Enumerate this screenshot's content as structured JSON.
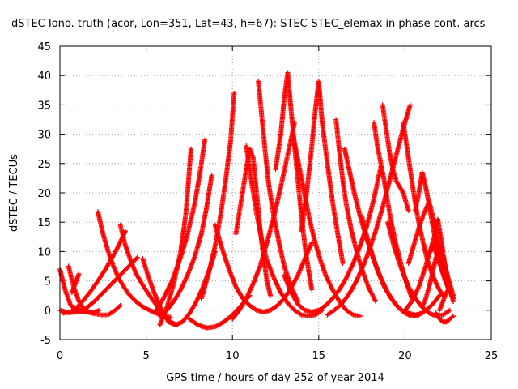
{
  "chart_data": {
    "type": "scatter",
    "title": "dSTEC Iono. truth (acor, Lon=351, Lat=43, h=67): STEC-STEC_elemax in phase cont. arcs",
    "xlabel": "GPS time / hours of day 252 of year 2014",
    "ylabel": "dSTEC  / TECUs",
    "xlim": [
      0,
      25
    ],
    "ylim": [
      -5,
      45
    ],
    "xticks": [
      0,
      5,
      10,
      15,
      20,
      25
    ],
    "yticks": [
      -5,
      0,
      5,
      10,
      15,
      20,
      25,
      30,
      35,
      40,
      45
    ],
    "grid": true,
    "marker": "+",
    "color": "#ff0000",
    "arcs": [
      {
        "x": [
          0.0,
          0.3,
          0.6,
          0.9,
          1.2,
          1.5
        ],
        "y": [
          7.0,
          3.5,
          1.0,
          0.0,
          -0.3,
          -0.2
        ]
      },
      {
        "x": [
          0.0,
          0.5,
          1.0,
          1.5,
          2.0,
          2.5,
          3.0,
          3.5,
          4.0,
          4.5
        ],
        "y": [
          0.0,
          -0.4,
          -0.3,
          0.3,
          1.5,
          3.0,
          4.5,
          6.0,
          7.5,
          9.0
        ]
      },
      {
        "x": [
          0.5,
          0.8,
          1.1,
          1.4,
          1.7,
          2.0,
          2.3
        ],
        "y": [
          7.5,
          4.0,
          1.5,
          0.2,
          -0.3,
          -0.3,
          0.0
        ]
      },
      {
        "x": [
          0.2,
          0.6,
          1.0,
          1.4,
          1.8,
          2.2,
          2.6,
          3.0,
          3.4,
          3.8
        ],
        "y": [
          -0.5,
          -0.3,
          0.5,
          1.8,
          3.3,
          5.0,
          6.8,
          8.8,
          11.0,
          13.5
        ]
      },
      {
        "x": [
          0.7,
          0.9,
          1.1
        ],
        "y": [
          3.0,
          4.6,
          6.2
        ]
      },
      {
        "x": [
          2.2,
          2.5,
          2.8,
          3.1,
          3.4,
          3.7,
          4.0,
          4.4,
          4.8,
          5.2,
          5.6,
          6.0,
          6.4
        ],
        "y": [
          16.8,
          13.0,
          10.0,
          7.5,
          5.5,
          4.0,
          2.7,
          1.5,
          0.6,
          0.0,
          -0.5,
          -1.0,
          -1.2
        ]
      },
      {
        "x": [
          0.8,
          1.2,
          1.6,
          2.0,
          2.4,
          2.8,
          3.2,
          3.5
        ],
        "y": [
          0.5,
          0.0,
          -0.3,
          -0.6,
          -0.8,
          -0.8,
          0.0,
          0.8
        ]
      },
      {
        "x": [
          3.5,
          3.8,
          4.1,
          4.4,
          4.8,
          5.2,
          5.6,
          6.0,
          6.4,
          6.8
        ],
        "y": [
          14.5,
          11.0,
          8.5,
          6.3,
          4.3,
          2.5,
          0.8,
          -0.8,
          -2.0,
          -2.5
        ]
      },
      {
        "x": [
          4.8,
          5.1,
          5.4,
          5.7,
          6.0,
          6.3,
          6.7,
          7.1,
          7.5,
          7.9,
          8.3,
          8.7,
          9.0
        ],
        "y": [
          8.8,
          6.0,
          3.5,
          1.3,
          -0.5,
          -2.0,
          -2.5,
          -2.0,
          -0.6,
          1.4,
          4.0,
          7.2,
          10.0
        ]
      },
      {
        "x": [
          5.5,
          6.0,
          6.5,
          7.0,
          7.4,
          7.8,
          8.1,
          8.4
        ],
        "y": [
          -0.5,
          2.0,
          5.0,
          9.0,
          13.0,
          18.0,
          23.0,
          29.0
        ]
      },
      {
        "x": [
          5.8,
          6.2,
          6.6,
          7.0,
          7.3,
          7.6
        ],
        "y": [
          -2.5,
          0.5,
          4.5,
          10.0,
          16.5,
          27.5
        ]
      },
      {
        "x": [
          5.8,
          6.2,
          6.6,
          7.0,
          7.4,
          7.8,
          8.2,
          8.5,
          8.8
        ],
        "y": [
          -1.0,
          0.0,
          1.5,
          3.5,
          6.0,
          9.0,
          13.0,
          17.5,
          23.0
        ]
      },
      {
        "x": [
          7.5,
          8.0,
          8.5,
          9.0,
          9.5,
          10.0,
          10.5,
          11.0
        ],
        "y": [
          -1.5,
          -2.5,
          -3.0,
          -2.8,
          -2.0,
          -0.8,
          0.8,
          2.5
        ]
      },
      {
        "x": [
          8.2,
          8.6,
          9.0,
          9.3,
          9.6,
          9.9,
          10.1
        ],
        "y": [
          2.0,
          6.0,
          11.0,
          16.0,
          22.0,
          29.0,
          37.0
        ]
      },
      {
        "x": [
          9.0,
          9.4,
          9.8,
          10.2,
          10.6,
          11.0,
          11.4,
          11.8,
          12.2,
          12.6,
          13.0,
          13.4,
          13.8,
          14.2,
          14.6
        ],
        "y": [
          14.5,
          10.5,
          7.0,
          4.0,
          2.0,
          0.8,
          0.0,
          -0.3,
          0.0,
          0.8,
          2.0,
          3.8,
          6.0,
          8.8,
          11.5
        ]
      },
      {
        "x": [
          10.0,
          10.4,
          10.8,
          11.2,
          11.6,
          12.0,
          12.4,
          12.8,
          13.2,
          13.6
        ],
        "y": [
          -1.5,
          0.0,
          2.0,
          4.5,
          7.5,
          11.5,
          16.0,
          21.0,
          26.5,
          32.0
        ]
      },
      {
        "x": [
          10.2,
          10.5,
          10.8,
          11.0,
          11.2,
          11.4,
          11.6,
          11.8,
          12.0,
          12.2
        ],
        "y": [
          13.0,
          18.5,
          24.0,
          27.5,
          26.0,
          20.0,
          14.0,
          9.0,
          5.0,
          2.5
        ]
      },
      {
        "x": [
          10.8,
          11.1,
          11.4,
          11.7,
          12.0,
          12.4,
          12.8,
          13.2,
          13.6,
          14.0,
          14.4,
          14.8,
          15.2
        ],
        "y": [
          28.0,
          22.0,
          16.5,
          12.0,
          8.5,
          5.5,
          3.0,
          1.2,
          0.0,
          -0.8,
          -1.0,
          -0.8,
          0.0
        ]
      },
      {
        "x": [
          11.5,
          11.7,
          11.9,
          12.1,
          12.4,
          12.7,
          13.0,
          13.4,
          13.8
        ],
        "y": [
          39.0,
          33.0,
          27.0,
          21.5,
          16.0,
          11.5,
          7.5,
          4.0,
          1.5
        ]
      },
      {
        "x": [
          12.5,
          12.8,
          13.0,
          13.2,
          13.4,
          13.6,
          13.8,
          14.0,
          14.2,
          14.4,
          14.6
        ],
        "y": [
          24.0,
          30.0,
          36.0,
          40.5,
          34.0,
          28.0,
          22.0,
          16.0,
          11.0,
          7.0,
          3.5
        ]
      },
      {
        "x": [
          13.0,
          13.4,
          13.8,
          14.2,
          14.6,
          15.0,
          15.4,
          15.8,
          16.2,
          16.6,
          17.0,
          17.4,
          17.8,
          18.2,
          18.6
        ],
        "y": [
          6.0,
          3.0,
          1.0,
          0.0,
          -0.3,
          0.0,
          0.8,
          2.0,
          3.5,
          5.5,
          8.0,
          11.0,
          14.5,
          19.0,
          24.5
        ]
      },
      {
        "x": [
          13.5,
          13.9,
          14.2,
          14.5,
          14.8,
          15.1,
          15.4,
          15.8,
          16.2,
          16.6,
          17.0,
          17.4
        ],
        "y": [
          30.0,
          24.0,
          19.5,
          15.0,
          11.5,
          8.5,
          6.0,
          3.5,
          1.5,
          0.0,
          -0.8,
          -1.0
        ]
      },
      {
        "x": [
          14.0,
          14.3,
          14.6,
          14.8,
          15.0,
          15.2,
          15.5,
          15.8,
          16.1,
          16.4
        ],
        "y": [
          13.5,
          20.0,
          28.0,
          34.0,
          39.0,
          32.0,
          25.0,
          18.5,
          13.0,
          8.0
        ]
      },
      {
        "x": [
          15.5,
          15.9,
          16.3,
          16.7,
          17.1,
          17.5,
          17.9,
          18.3,
          18.7,
          19.1,
          19.5,
          19.9,
          20.3
        ],
        "y": [
          -0.8,
          0.0,
          1.0,
          2.5,
          4.5,
          7.0,
          10.0,
          13.5,
          17.5,
          22.0,
          26.5,
          31.0,
          35.0
        ]
      },
      {
        "x": [
          16.0,
          16.2,
          16.4,
          16.6,
          16.9,
          17.2,
          17.5,
          17.9,
          18.3
        ],
        "y": [
          32.5,
          27.0,
          22.0,
          18.0,
          13.5,
          10.0,
          7.0,
          3.8,
          1.5
        ]
      },
      {
        "x": [
          16.5,
          16.8,
          17.1,
          17.4,
          17.8,
          18.2,
          18.6,
          19.0,
          19.4,
          19.8,
          20.2,
          20.6,
          21.0
        ],
        "y": [
          27.5,
          23.5,
          19.5,
          16.0,
          12.0,
          8.5,
          5.5,
          3.0,
          1.2,
          0.0,
          -0.5,
          -0.8,
          -0.5
        ]
      },
      {
        "x": [
          17.5,
          17.8,
          18.1,
          18.4,
          18.8,
          19.2,
          19.6,
          20.0,
          20.4,
          20.8,
          21.2,
          21.6,
          22.0
        ],
        "y": [
          16.0,
          12.5,
          9.5,
          6.8,
          4.0,
          2.0,
          0.5,
          -0.5,
          -1.0,
          -0.8,
          0.0,
          1.0,
          2.5
        ]
      },
      {
        "x": [
          18.2,
          18.4,
          18.6,
          18.8,
          19.0,
          19.2,
          19.5,
          19.8,
          20.1,
          20.4
        ],
        "y": [
          32.0,
          28.0,
          25.0,
          22.0,
          18.5,
          15.0,
          11.0,
          7.5,
          4.5,
          2.0
        ]
      },
      {
        "x": [
          18.7,
          18.9,
          19.1,
          19.3,
          19.5,
          19.7,
          19.9,
          20.2
        ],
        "y": [
          35.0,
          31.0,
          27.0,
          24.0,
          22.0,
          21.0,
          20.0,
          17.0
        ]
      },
      {
        "x": [
          19.0,
          19.4,
          19.8,
          20.2,
          20.6,
          21.0,
          21.4,
          21.8,
          22.2,
          22.6
        ],
        "y": [
          15.0,
          10.5,
          7.0,
          4.0,
          2.0,
          0.5,
          -0.5,
          -1.0,
          -0.8,
          0.0
        ]
      },
      {
        "x": [
          19.9,
          20.1,
          20.3,
          20.5,
          20.7,
          20.9,
          21.1,
          21.3,
          21.6,
          21.9,
          22.2
        ],
        "y": [
          32.0,
          28.0,
          24.0,
          20.0,
          16.5,
          13.5,
          11.0,
          8.5,
          6.0,
          4.0,
          2.5
        ]
      },
      {
        "x": [
          20.2,
          20.5,
          20.8,
          21.1,
          21.4,
          21.7,
          22.0,
          22.3,
          22.6,
          22.8
        ],
        "y": [
          8.0,
          11.0,
          14.0,
          16.5,
          18.5,
          15.0,
          10.5,
          6.5,
          3.5,
          1.5
        ]
      },
      {
        "x": [
          20.0,
          20.4,
          20.8,
          21.2,
          21.6,
          22.0,
          22.4,
          22.8
        ],
        "y": [
          0.0,
          1.5,
          4.0,
          7.5,
          11.5,
          8.0,
          4.5,
          2.0
        ]
      },
      {
        "x": [
          20.6,
          20.8,
          21.0,
          21.2,
          21.4,
          21.6,
          21.8,
          22.0,
          22.3,
          22.6
        ],
        "y": [
          17.0,
          20.0,
          23.5,
          21.0,
          18.0,
          14.5,
          11.5,
          8.5,
          5.5,
          3.0
        ]
      },
      {
        "x": [
          21.0,
          21.2,
          21.4,
          21.6,
          21.8,
          22.0,
          22.2,
          22.5,
          22.8
        ],
        "y": [
          0.5,
          2.0,
          4.0,
          6.5,
          9.0,
          11.0,
          9.0,
          5.5,
          2.5
        ]
      },
      {
        "x": [
          21.5,
          21.7,
          21.9,
          22.1,
          22.3,
          22.5,
          22.7
        ],
        "y": [
          10.0,
          12.5,
          15.5,
          12.0,
          8.0,
          5.0,
          2.5
        ]
      },
      {
        "x": [
          21.8,
          22.0,
          22.2,
          22.4,
          22.6,
          22.8
        ],
        "y": [
          -0.5,
          -1.5,
          -2.0,
          -2.0,
          -1.5,
          -1.0
        ]
      },
      {
        "x": [
          22.0,
          22.2,
          22.4,
          22.6,
          22.8
        ],
        "y": [
          0.0,
          1.5,
          3.0,
          4.0,
          2.0
        ]
      }
    ]
  }
}
